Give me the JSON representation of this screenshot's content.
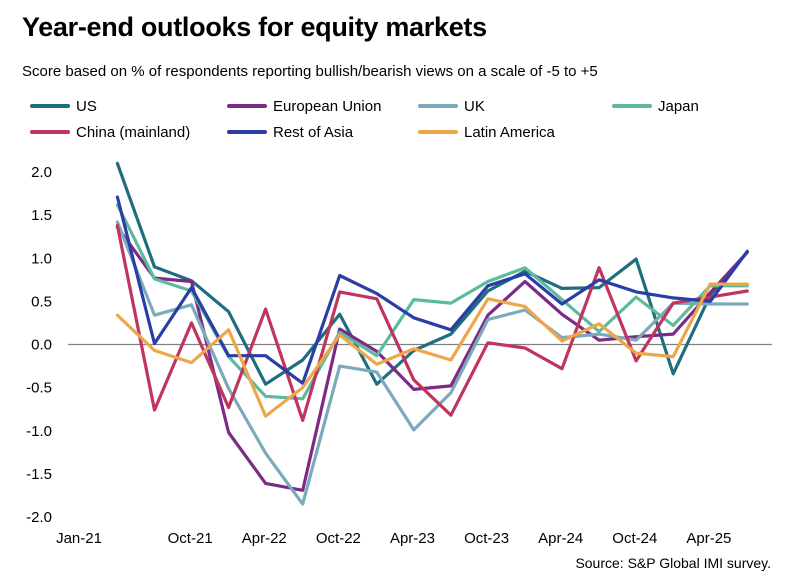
{
  "chart_data": {
    "type": "line",
    "title": "Year-end outlooks for equity markets",
    "subtitle": "Score based on % of respondents reporting bullish/bearish views on a scale of -5 to +5",
    "source": "Source: S&P Global IMI survey.",
    "xlabel": "",
    "ylabel": "",
    "ylim": [
      -2.0,
      2.0
    ],
    "yticks": [
      "2.0",
      "1.5",
      "1.0",
      "0.5",
      "0.0",
      "-0.5",
      "-1.0",
      "-1.5",
      "-2.0"
    ],
    "ytick_values": [
      2.0,
      1.5,
      1.0,
      0.5,
      0.0,
      -0.5,
      -1.0,
      -1.5,
      -2.0
    ],
    "x_start_month_index": 0,
    "x_tick_labels": [
      "Jan-21",
      "Oct-21",
      "Apr-22",
      "Oct-22",
      "Apr-23",
      "Oct-23",
      "Apr-24",
      "Oct-24",
      "Apr-25"
    ],
    "x_tick_month_index": [
      0,
      9,
      15,
      21,
      27,
      33,
      39,
      45,
      51
    ],
    "x_min": 0,
    "x_max": 57,
    "x_month_index": [
      4,
      7,
      10,
      13,
      16,
      19,
      22,
      25,
      28,
      31,
      34,
      37,
      40,
      43,
      46,
      49,
      52,
      55
    ],
    "series": [
      {
        "name": "US",
        "color": "#1f6e7e",
        "values": [
          2.1,
          0.9,
          0.74,
          0.38,
          -0.46,
          -0.18,
          0.35,
          -0.46,
          -0.07,
          0.12,
          0.62,
          0.85,
          0.65,
          0.66,
          0.99,
          -0.34,
          0.57,
          1.07
        ]
      },
      {
        "name": "European Union",
        "color": "#7b2a86",
        "values": [
          1.36,
          0.77,
          0.73,
          -1.02,
          -1.61,
          -1.69,
          0.18,
          -0.08,
          -0.52,
          -0.48,
          0.34,
          0.73,
          0.35,
          0.05,
          0.09,
          0.12,
          0.6,
          1.07
        ]
      },
      {
        "name": "UK",
        "color": "#7aaabb",
        "values": [
          1.42,
          0.34,
          0.46,
          -0.51,
          -1.26,
          -1.85,
          -0.25,
          -0.32,
          -0.99,
          -0.56,
          0.29,
          0.4,
          0.08,
          0.12,
          0.05,
          0.48,
          0.47,
          0.47
        ]
      },
      {
        "name": "Japan",
        "color": "#5dba9f",
        "values": [
          1.62,
          0.76,
          0.62,
          -0.14,
          -0.6,
          -0.63,
          0.14,
          -0.13,
          0.52,
          0.48,
          0.73,
          0.89,
          0.52,
          0.15,
          0.55,
          0.22,
          0.68,
          0.68
        ]
      },
      {
        "name": "China (mainland)",
        "color": "#c0355d",
        "values": [
          1.38,
          -0.76,
          0.25,
          -0.73,
          0.41,
          -0.88,
          0.61,
          0.53,
          -0.41,
          -0.82,
          0.02,
          -0.04,
          -0.28,
          0.89,
          -0.19,
          0.48,
          0.55,
          0.62
        ]
      },
      {
        "name": "Rest of Asia",
        "color": "#2a3ea6",
        "values": [
          1.71,
          0.01,
          0.66,
          -0.13,
          -0.13,
          -0.45,
          0.8,
          0.59,
          0.31,
          0.17,
          0.68,
          0.82,
          0.47,
          0.75,
          0.61,
          0.54,
          0.5,
          1.08
        ]
      },
      {
        "name": "Latin America",
        "color": "#eda74a",
        "values": [
          0.34,
          -0.07,
          -0.21,
          0.17,
          -0.83,
          -0.5,
          0.11,
          -0.23,
          -0.05,
          -0.18,
          0.53,
          0.44,
          0.04,
          0.24,
          -0.1,
          -0.14,
          0.7,
          0.7
        ]
      }
    ]
  }
}
